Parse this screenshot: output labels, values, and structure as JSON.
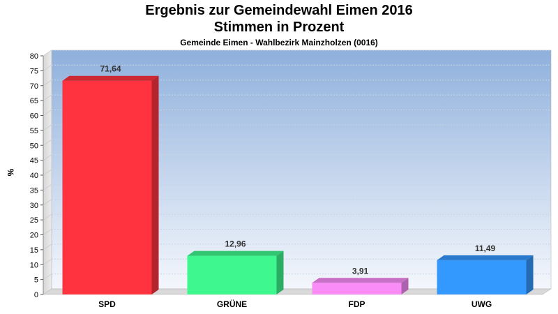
{
  "chart_data": {
    "type": "bar",
    "title": "Ergebnis zur Gemeindewahl Eimen 2016",
    "title2": "Stimmen in Prozent",
    "subtitle": "Gemeinde Eimen - Wahlbezirk Mainzholzen (0016)",
    "ylabel": "%",
    "xlabel": "",
    "ylim": [
      0,
      80
    ],
    "yticks": [
      0,
      5,
      10,
      15,
      20,
      25,
      30,
      35,
      40,
      45,
      50,
      55,
      60,
      65,
      70,
      75,
      80
    ],
    "categories": [
      "SPD",
      "GRÜNE",
      "FDP",
      "UWG"
    ],
    "values": [
      71.64,
      12.96,
      3.91,
      11.49
    ],
    "value_labels": [
      "71,64",
      "12,96",
      "3,91",
      "11,49"
    ],
    "colors": [
      "#ff3340",
      "#3ff78f",
      "#f98cf7",
      "#3399ff"
    ],
    "grid": true
  }
}
